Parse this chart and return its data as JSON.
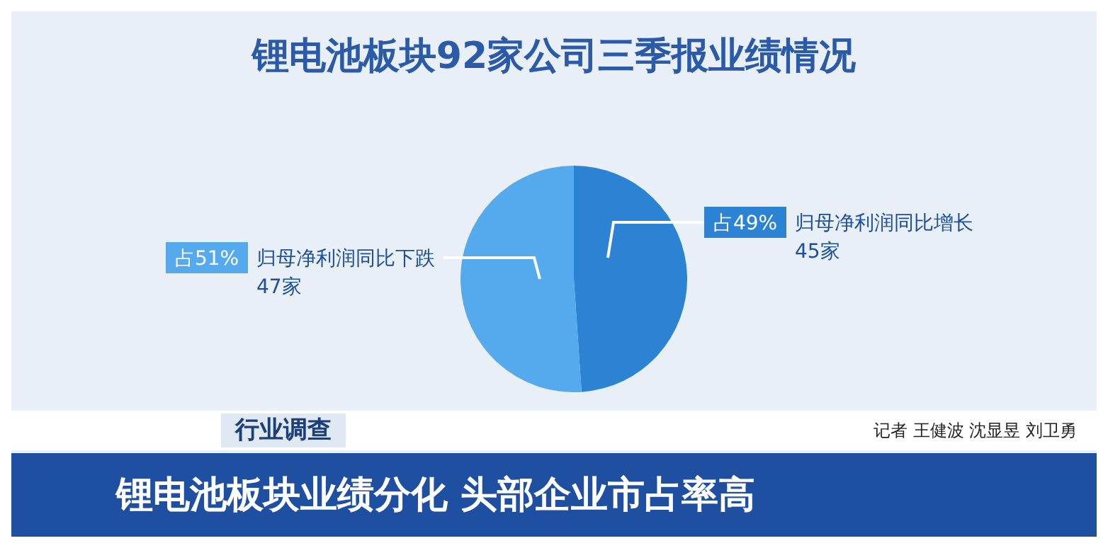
{
  "chart_data": {
    "type": "pie",
    "title": "锂电池板块92家公司三季报业绩情况",
    "categories": [
      "归母净利润同比增长",
      "归母净利润同比下跌"
    ],
    "values": [
      45,
      47
    ],
    "value_labels": [
      "45家",
      "47家"
    ],
    "colors": [
      "#2c83d4",
      "#55aaee"
    ],
    "legend": true,
    "annotations": [
      "占49%",
      "占51%",
      "行业调查",
      "记者  王健波  沈显昱  刘卫勇",
      "锂电池板块业绩分化  头部企业市占率高"
    ]
  }
}
